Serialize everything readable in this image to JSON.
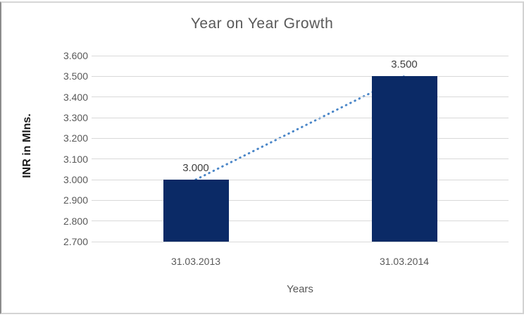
{
  "chart_data": {
    "type": "bar",
    "title": "Year on Year Growth",
    "xlabel": "Years",
    "ylabel": "INR in Mlns.",
    "categories": [
      "31.03.2013",
      "31.03.2014"
    ],
    "values": [
      3.0,
      3.5
    ],
    "value_labels": [
      "3.000",
      "3.500"
    ],
    "ylim": [
      2.7,
      3.6
    ],
    "ytick_labels": [
      "3.600",
      "3.500",
      "3.400",
      "3.300",
      "3.200",
      "3.100",
      "3.000",
      "2.900",
      "2.800",
      "2.700"
    ],
    "grid": true,
    "legend_position": "none",
    "trendline": {
      "style": "dotted",
      "from_value": 3.0,
      "to_value": 3.5
    },
    "colors": {
      "bar": "#0b2a66",
      "trendline": "#4a86c8",
      "gridline": "#d9d9d9",
      "title_text": "#595959",
      "tick_text": "#595959",
      "data_label_text": "#404040",
      "y_axis_title_text": "#1a1a1a",
      "x_axis_title_text": "#595959",
      "frame": "#d2d2d2"
    }
  }
}
